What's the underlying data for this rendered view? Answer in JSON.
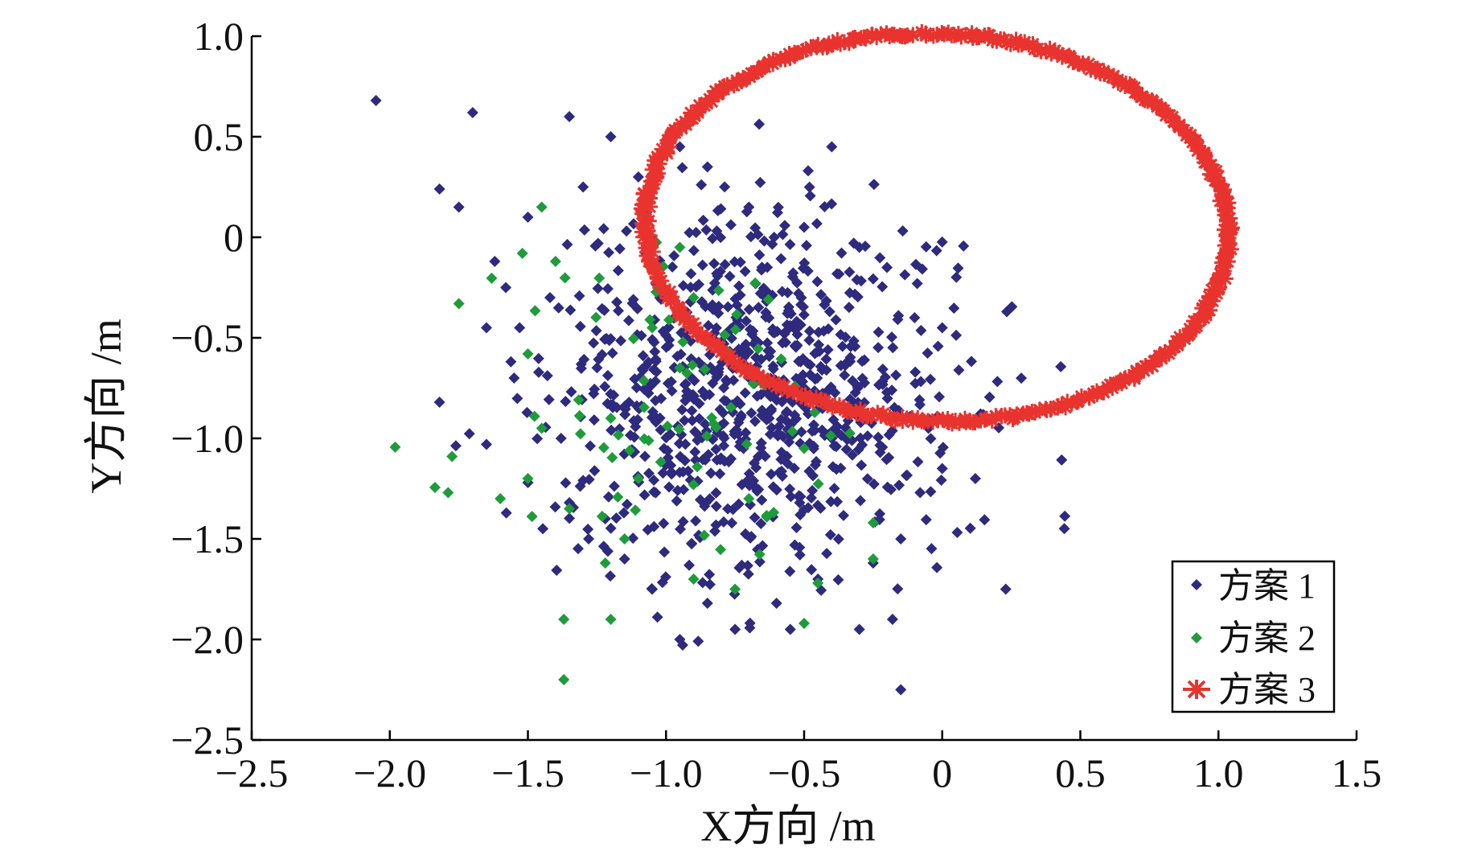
{
  "chart_data": {
    "type": "scatter",
    "title": "",
    "xlabel": "X方向 /m",
    "ylabel": "Y方向 /m",
    "xlim": [
      -2.5,
      1.5
    ],
    "ylim": [
      -2.5,
      1.0
    ],
    "x_ticks": [
      {
        "value": -2.5,
        "label": "−2.5"
      },
      {
        "value": -2.0,
        "label": "−2.0"
      },
      {
        "value": -1.5,
        "label": "−1.5"
      },
      {
        "value": -1.0,
        "label": "−1.0"
      },
      {
        "value": -0.5,
        "label": "−0.5"
      },
      {
        "value": 0,
        "label": "0"
      },
      {
        "value": 0.5,
        "label": "0.5"
      },
      {
        "value": 1.0,
        "label": "1.0"
      },
      {
        "value": 1.5,
        "label": "1.5"
      }
    ],
    "y_ticks": [
      {
        "value": 1.0,
        "label": "1.0"
      },
      {
        "value": 0.5,
        "label": "0.5"
      },
      {
        "value": 0,
        "label": "0"
      },
      {
        "value": -0.5,
        "label": "−0.5"
      },
      {
        "value": -1.0,
        "label": "−1.0"
      },
      {
        "value": -1.5,
        "label": "−1.5"
      },
      {
        "value": -2.0,
        "label": "−2.0"
      },
      {
        "value": -2.5,
        "label": "−2.5"
      }
    ],
    "grid": false,
    "legend_position": "bottom-right",
    "series": [
      {
        "name": "方案 1",
        "marker": "diamond",
        "color": "#2e2a7e",
        "points": [
          [
            -2.05,
            0.68
          ],
          [
            -1.7,
            0.62
          ],
          [
            -1.35,
            0.6
          ],
          [
            -1.82,
            0.24
          ],
          [
            -1.75,
            0.15
          ],
          [
            -1.5,
            0.1
          ],
          [
            -1.62,
            -0.12
          ],
          [
            -1.58,
            -0.25
          ],
          [
            -1.42,
            -0.3
          ],
          [
            -1.53,
            -0.45
          ],
          [
            -1.65,
            -0.45
          ],
          [
            -1.55,
            -0.7
          ],
          [
            -1.82,
            -0.82
          ],
          [
            -1.65,
            -1.03
          ],
          [
            -1.5,
            -1.22
          ],
          [
            -1.35,
            -1.32
          ],
          [
            -1.38,
            -1.0
          ],
          [
            -1.28,
            -1.5
          ],
          [
            -1.22,
            -1.4
          ],
          [
            -1.15,
            -1.6
          ],
          [
            -0.95,
            -2.0
          ],
          [
            -0.75,
            -1.95
          ],
          [
            -0.6,
            -1.82
          ],
          [
            -0.55,
            -1.95
          ],
          [
            -0.3,
            -1.95
          ],
          [
            -0.18,
            -1.9
          ],
          [
            -0.15,
            -2.25
          ],
          [
            0.23,
            -1.75
          ],
          [
            0.12,
            -1.2
          ],
          [
            0.0,
            -1.15
          ],
          [
            -0.05,
            -0.95
          ],
          [
            0.0,
            -0.45
          ],
          [
            -0.1,
            -0.4
          ],
          [
            -0.2,
            -0.15
          ],
          [
            -0.3,
            -0.05
          ],
          [
            -0.4,
            0.45
          ],
          [
            -0.5,
            0.05
          ],
          [
            -0.7,
            0.15
          ],
          [
            -0.85,
            0.35
          ],
          [
            -1.1,
            0.3
          ],
          [
            -1.2,
            0.5
          ],
          [
            -0.95,
            0.45
          ],
          [
            -1.3,
            0.25
          ],
          [
            -0.15,
            -1.5
          ],
          [
            -0.25,
            -1.62
          ],
          [
            -0.45,
            -1.7
          ],
          [
            -1.05,
            -1.75
          ],
          [
            -0.85,
            -1.82
          ]
        ],
        "cluster": {
          "center": [
            -0.68,
            -0.78
          ],
          "spread": [
            0.36,
            0.44
          ],
          "count": 850,
          "seed": 7
        }
      },
      {
        "name": "方案 2",
        "marker": "diamond",
        "color": "#1f9c3a",
        "points": [
          [
            -1.45,
            0.15
          ],
          [
            -1.52,
            -0.08
          ],
          [
            -1.4,
            -0.12
          ],
          [
            -1.75,
            -0.33
          ],
          [
            -1.5,
            -0.58
          ],
          [
            -1.45,
            -0.95
          ],
          [
            -1.6,
            -1.3
          ],
          [
            -1.35,
            -1.35
          ],
          [
            -1.5,
            -1.2
          ],
          [
            -1.37,
            -1.9
          ],
          [
            -1.2,
            -1.9
          ],
          [
            -1.22,
            -1.62
          ],
          [
            -1.37,
            -2.2
          ],
          [
            -0.5,
            -1.92
          ],
          [
            -0.45,
            -1.72
          ],
          [
            -0.25,
            -1.6
          ],
          [
            -0.25,
            -1.42
          ],
          [
            -0.75,
            -1.75
          ],
          [
            -0.9,
            -1.7
          ],
          [
            -1.15,
            -1.5
          ],
          [
            -1.1,
            -1.2
          ],
          [
            -0.9,
            -0.3
          ],
          [
            -0.95,
            -0.05
          ],
          [
            -0.5,
            -1.05
          ],
          [
            -0.7,
            -1.3
          ],
          [
            -1.2,
            -0.9
          ],
          [
            -1.05,
            -0.45
          ],
          [
            -0.95,
            -0.65
          ]
        ],
        "cluster": {
          "center": [
            -0.9,
            -0.9
          ],
          "spread": [
            0.35,
            0.4
          ],
          "count": 70,
          "seed": 21
        }
      },
      {
        "name": "方案 3",
        "marker": "asterisk",
        "color": "#e8332e",
        "ellipse": {
          "center": [
            -0.02,
            0.05
          ],
          "rx": 1.06,
          "ry": 0.96,
          "rotation_deg": -12,
          "count": 520,
          "jitter": 0.015,
          "seed": 3
        }
      }
    ]
  }
}
